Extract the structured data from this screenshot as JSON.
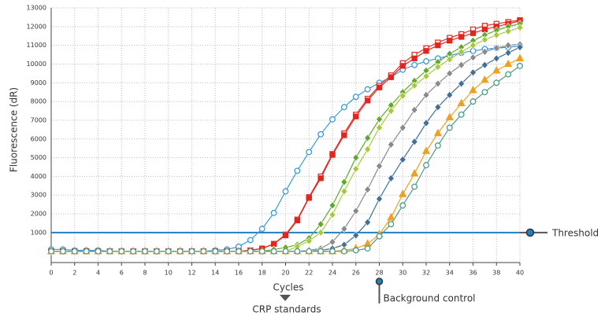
{
  "chart_data": {
    "type": "line",
    "y_label": "Fluorescence (dR)",
    "x_label": "Cycles",
    "x": [
      0,
      1,
      2,
      3,
      4,
      5,
      6,
      7,
      8,
      9,
      10,
      11,
      12,
      13,
      14,
      15,
      16,
      17,
      18,
      19,
      20,
      21,
      22,
      23,
      24,
      25,
      26,
      27,
      28,
      29,
      30,
      31,
      32,
      33,
      34,
      35,
      36,
      37,
      38,
      39,
      40
    ],
    "xlim": [
      0,
      40
    ],
    "xticks": [
      0,
      2,
      4,
      6,
      8,
      10,
      12,
      14,
      16,
      18,
      20,
      22,
      24,
      26,
      28,
      30,
      32,
      34,
      36,
      38,
      40
    ],
    "ylim": [
      -600,
      13000
    ],
    "yticks": [
      1000,
      2000,
      3000,
      4000,
      5000,
      6000,
      7000,
      8000,
      9000,
      10000,
      11000,
      12000,
      13000
    ],
    "grid": true,
    "threshold": {
      "value": 1000,
      "label": "Threshold",
      "color": "#1f7fc0"
    },
    "annotations": [
      {
        "label": "CRP standards"
      },
      {
        "x": 28,
        "label": "Background control"
      }
    ],
    "series": [
      {
        "color": "#3a9ad9",
        "marker": "circle-open",
        "values": [
          100,
          100,
          50,
          50,
          50,
          0,
          0,
          0,
          0,
          0,
          0,
          0,
          0,
          0,
          50,
          100,
          250,
          600,
          1200,
          2050,
          3200,
          4300,
          5300,
          6250,
          7050,
          7700,
          8250,
          8650,
          9000,
          9300,
          9700,
          9950,
          10150,
          10300,
          10450,
          10600,
          10700,
          10800,
          10850,
          10900,
          10950
        ]
      },
      {
        "color": "#e8312a",
        "marker": "square-open",
        "values": [
          0,
          0,
          0,
          0,
          0,
          0,
          0,
          0,
          0,
          0,
          0,
          0,
          0,
          0,
          0,
          0,
          0,
          50,
          150,
          400,
          900,
          1700,
          2900,
          4000,
          5200,
          6300,
          7300,
          8150,
          8850,
          9400,
          10050,
          10500,
          10850,
          11150,
          11400,
          11600,
          11850,
          12050,
          12150,
          12250,
          12350
        ]
      },
      {
        "color": "#e0261e",
        "marker": "square",
        "values": [
          0,
          0,
          0,
          0,
          0,
          0,
          0,
          0,
          0,
          0,
          0,
          0,
          0,
          0,
          0,
          0,
          0,
          50,
          150,
          400,
          850,
          1650,
          2850,
          3900,
          5150,
          6200,
          7200,
          8050,
          8750,
          9300,
          9900,
          10300,
          10700,
          11000,
          11250,
          11450,
          11650,
          11850,
          12000,
          12150,
          12300
        ]
      },
      {
        "color": "#5fa82a",
        "marker": "diamond",
        "values": [
          0,
          0,
          0,
          0,
          0,
          0,
          0,
          0,
          0,
          0,
          0,
          0,
          0,
          0,
          0,
          0,
          0,
          0,
          0,
          100,
          200,
          350,
          700,
          1450,
          2450,
          3700,
          5000,
          6050,
          7050,
          7800,
          8500,
          9100,
          9650,
          10100,
          10550,
          10900,
          11250,
          11550,
          11800,
          12000,
          12150
        ]
      },
      {
        "color": "#a6c936",
        "marker": "diamond",
        "values": [
          0,
          0,
          0,
          0,
          0,
          0,
          0,
          0,
          0,
          0,
          0,
          0,
          0,
          0,
          0,
          0,
          0,
          0,
          0,
          0,
          0,
          250,
          550,
          1000,
          1950,
          3200,
          4400,
          5450,
          6600,
          7500,
          8300,
          8850,
          9350,
          9850,
          10250,
          10650,
          11000,
          11300,
          11550,
          11750,
          11950
        ]
      },
      {
        "color": "#8a8a8a",
        "marker": "diamond",
        "values": [
          0,
          0,
          0,
          0,
          0,
          0,
          0,
          0,
          0,
          0,
          0,
          0,
          0,
          0,
          0,
          0,
          0,
          0,
          0,
          0,
          0,
          0,
          50,
          150,
          500,
          1200,
          2150,
          3300,
          4550,
          5700,
          6600,
          7550,
          8350,
          8950,
          9500,
          9950,
          10350,
          10650,
          10850,
          11000,
          11050
        ]
      },
      {
        "color": "#3f6f9a",
        "marker": "diamond",
        "values": [
          0,
          0,
          0,
          0,
          0,
          0,
          0,
          0,
          0,
          0,
          0,
          0,
          0,
          0,
          0,
          0,
          0,
          0,
          0,
          0,
          0,
          0,
          0,
          50,
          150,
          350,
          850,
          1550,
          2800,
          3900,
          4900,
          5850,
          6850,
          7700,
          8350,
          8950,
          9550,
          9950,
          10300,
          10600,
          10900
        ]
      },
      {
        "color": "#f0a020",
        "marker": "triangle",
        "values": [
          0,
          0,
          0,
          0,
          0,
          0,
          0,
          0,
          0,
          0,
          0,
          0,
          0,
          0,
          0,
          0,
          0,
          0,
          0,
          0,
          0,
          0,
          0,
          0,
          0,
          50,
          150,
          400,
          900,
          1800,
          3050,
          4150,
          5350,
          6300,
          7150,
          7900,
          8600,
          9150,
          9650,
          10000,
          10300
        ]
      },
      {
        "color": "#4f9a8a",
        "marker": "circle-open",
        "values": [
          0,
          0,
          0,
          0,
          0,
          0,
          0,
          0,
          0,
          0,
          0,
          0,
          0,
          0,
          0,
          0,
          0,
          0,
          0,
          0,
          0,
          0,
          0,
          0,
          0,
          0,
          50,
          150,
          800,
          1450,
          2450,
          3450,
          4600,
          5650,
          6600,
          7300,
          8000,
          8500,
          9000,
          9450,
          9900
        ]
      }
    ]
  }
}
